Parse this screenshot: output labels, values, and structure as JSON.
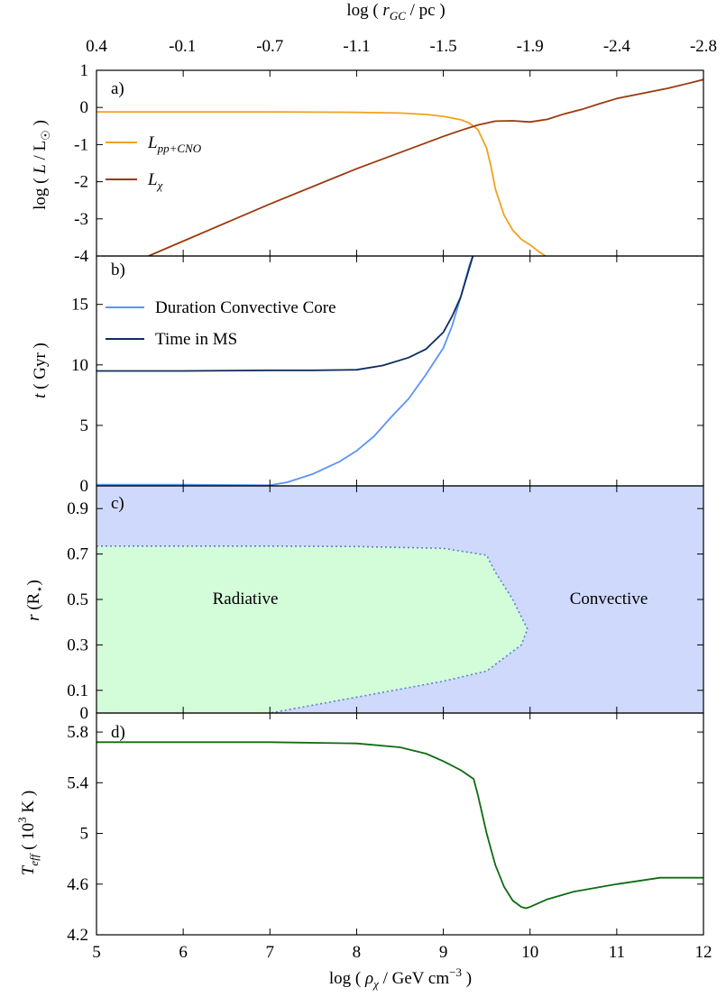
{
  "chart_data": {
    "type": "line",
    "shared_x": {
      "label": "log ( ρ_χ / GeV cm^−3 )",
      "label_parts": {
        "prefix": "log ( ",
        "symbol": "ρ",
        "sub": "χ",
        "mid": " / GeV cm",
        "sup": "−3",
        "suffix": " )"
      },
      "range": [
        5,
        12
      ],
      "ticks": [
        "5",
        "6",
        "7",
        "8",
        "9",
        "10",
        "11",
        "12"
      ]
    },
    "top_axis": {
      "label": "log ( r_GC / pc )",
      "label_parts": {
        "prefix": "log ( ",
        "symbol": "r",
        "sub": "GC",
        "suffix": " / pc )"
      },
      "ticks": [
        {
          "x": 5.0,
          "label": "0.4"
        },
        {
          "x": 5.99,
          "label": "-0.1"
        },
        {
          "x": 7.0,
          "label": "-0.7"
        },
        {
          "x": 8.0,
          "label": "-1.1"
        },
        {
          "x": 9.0,
          "label": "-1.5"
        },
        {
          "x": 10.0,
          "label": "-1.9"
        },
        {
          "x": 11.0,
          "label": "-2.4"
        },
        {
          "x": 12.0,
          "label": "-2.8"
        }
      ]
    },
    "panels": [
      {
        "tag": "a)",
        "ylabel": "log ( L / L☉ )",
        "ylabel_parts": {
          "prefix": "log ( ",
          "symbol": "L",
          "mid": " / L",
          "sun": "☉",
          "suffix": " )"
        },
        "ylim": [
          -4,
          1
        ],
        "yticks": [
          "1",
          "0",
          "-1",
          "-2",
          "-3",
          "-4"
        ],
        "series": [
          {
            "name": "L_pp+CNO",
            "name_parts": {
              "symbol": "L",
              "sub": "pp+CNO"
            },
            "color": "#f2a21c",
            "x": [
              5.0,
              6.0,
              7.0,
              8.0,
              8.5,
              8.8,
              9.0,
              9.2,
              9.3,
              9.4,
              9.5,
              9.55,
              9.6,
              9.7,
              9.8,
              9.9,
              10.0,
              10.1,
              10.18
            ],
            "y": [
              -0.12,
              -0.12,
              -0.12,
              -0.13,
              -0.15,
              -0.19,
              -0.24,
              -0.33,
              -0.42,
              -0.6,
              -1.1,
              -1.6,
              -2.2,
              -2.9,
              -3.3,
              -3.55,
              -3.7,
              -3.88,
              -4.0
            ]
          },
          {
            "name": "L_χ",
            "name_parts": {
              "symbol": "L",
              "sub": "χ"
            },
            "color": "#9a3a0e",
            "x": [
              5.6,
              6.0,
              7.0,
              8.0,
              9.0,
              9.2,
              9.4,
              9.6,
              9.8,
              10.0,
              10.2,
              10.4,
              10.6,
              10.8,
              11.0,
              11.3,
              11.6,
              12.0
            ],
            "y": [
              -4.0,
              -3.6,
              -2.6,
              -1.65,
              -0.78,
              -0.62,
              -0.47,
              -0.37,
              -0.36,
              -0.39,
              -0.32,
              -0.17,
              -0.05,
              0.1,
              0.24,
              0.38,
              0.52,
              0.75
            ]
          }
        ]
      },
      {
        "tag": "b)",
        "ylabel": "t ( Gyr )",
        "ylabel_parts": {
          "symbol": "t",
          "suffix": " ( Gyr )"
        },
        "ylim": [
          0,
          19
        ],
        "yticks": [
          "0",
          "5",
          "10",
          "15"
        ],
        "series": [
          {
            "name": "Duration Convective Core",
            "color": "#5c93f5",
            "x": [
              5.0,
              6.0,
              7.0,
              7.2,
              7.5,
              7.8,
              8.0,
              8.2,
              8.4,
              8.6,
              8.8,
              9.0,
              9.1,
              9.2,
              9.3,
              9.35
            ],
            "y": [
              0.1,
              0.1,
              0.05,
              0.3,
              1.0,
              2.0,
              2.9,
              4.1,
              5.7,
              7.2,
              9.2,
              11.4,
              13.2,
              15.6,
              18.2,
              19.2
            ]
          },
          {
            "name": "Time in MS",
            "color": "#0d2d5c",
            "x": [
              5.0,
              6.0,
              7.0,
              7.5,
              8.0,
              8.3,
              8.6,
              8.8,
              9.0,
              9.1,
              9.2,
              9.3,
              9.35
            ],
            "y": [
              9.5,
              9.5,
              9.55,
              9.55,
              9.6,
              9.95,
              10.6,
              11.3,
              12.7,
              14.0,
              15.6,
              18.0,
              19.2
            ]
          }
        ]
      },
      {
        "tag": "c)",
        "ylabel": "r (R⋆)",
        "ylabel_parts": {
          "symbol": "r",
          "suffix": " (R",
          "sub": "⋆",
          "close": ")"
        },
        "ylim": [
          0,
          1.0
        ],
        "yticks": [
          "0",
          "0.1",
          "0.3",
          "0.5",
          "0.7",
          "0.9"
        ],
        "regions": [
          {
            "name": "Radiative",
            "color": "#d3fcd9"
          },
          {
            "name": "Convective",
            "color": "#cfd9fc"
          }
        ],
        "boundary": {
          "color": "#5a7fd0",
          "x": [
            5.0,
            6.0,
            7.0,
            8.0,
            9.0,
            9.5,
            9.6,
            9.8,
            9.97,
            9.9,
            9.5,
            9.0,
            8.0,
            7.0,
            5.0
          ],
          "y": [
            0.735,
            0.735,
            0.735,
            0.733,
            0.725,
            0.695,
            0.62,
            0.5,
            0.37,
            0.3,
            0.185,
            0.14,
            0.07,
            0.0,
            0.0
          ]
        }
      },
      {
        "tag": "d)",
        "ylabel": "T_eff ( 10^3 K )",
        "ylabel_parts": {
          "symbol": "T",
          "sub": "eff",
          "mid": " ( 10",
          "sup": "3",
          "suffix": " K )"
        },
        "ylim": [
          4.2,
          5.95
        ],
        "yticks": [
          "4.2",
          "4.6",
          "5",
          "5.4",
          "5.8"
        ],
        "series": [
          {
            "name": "T_eff",
            "color": "#106b10",
            "x": [
              5.0,
              6.0,
              7.0,
              8.0,
              8.5,
              8.8,
              9.0,
              9.2,
              9.35,
              9.4,
              9.5,
              9.6,
              9.7,
              9.8,
              9.9,
              9.95,
              10.0,
              10.2,
              10.5,
              11.0,
              11.5,
              12.0
            ],
            "y": [
              5.72,
              5.72,
              5.72,
              5.71,
              5.68,
              5.63,
              5.57,
              5.5,
              5.43,
              5.3,
              5.0,
              4.75,
              4.58,
              4.47,
              4.42,
              4.41,
              4.42,
              4.48,
              4.54,
              4.6,
              4.65,
              4.65
            ]
          }
        ]
      }
    ]
  }
}
